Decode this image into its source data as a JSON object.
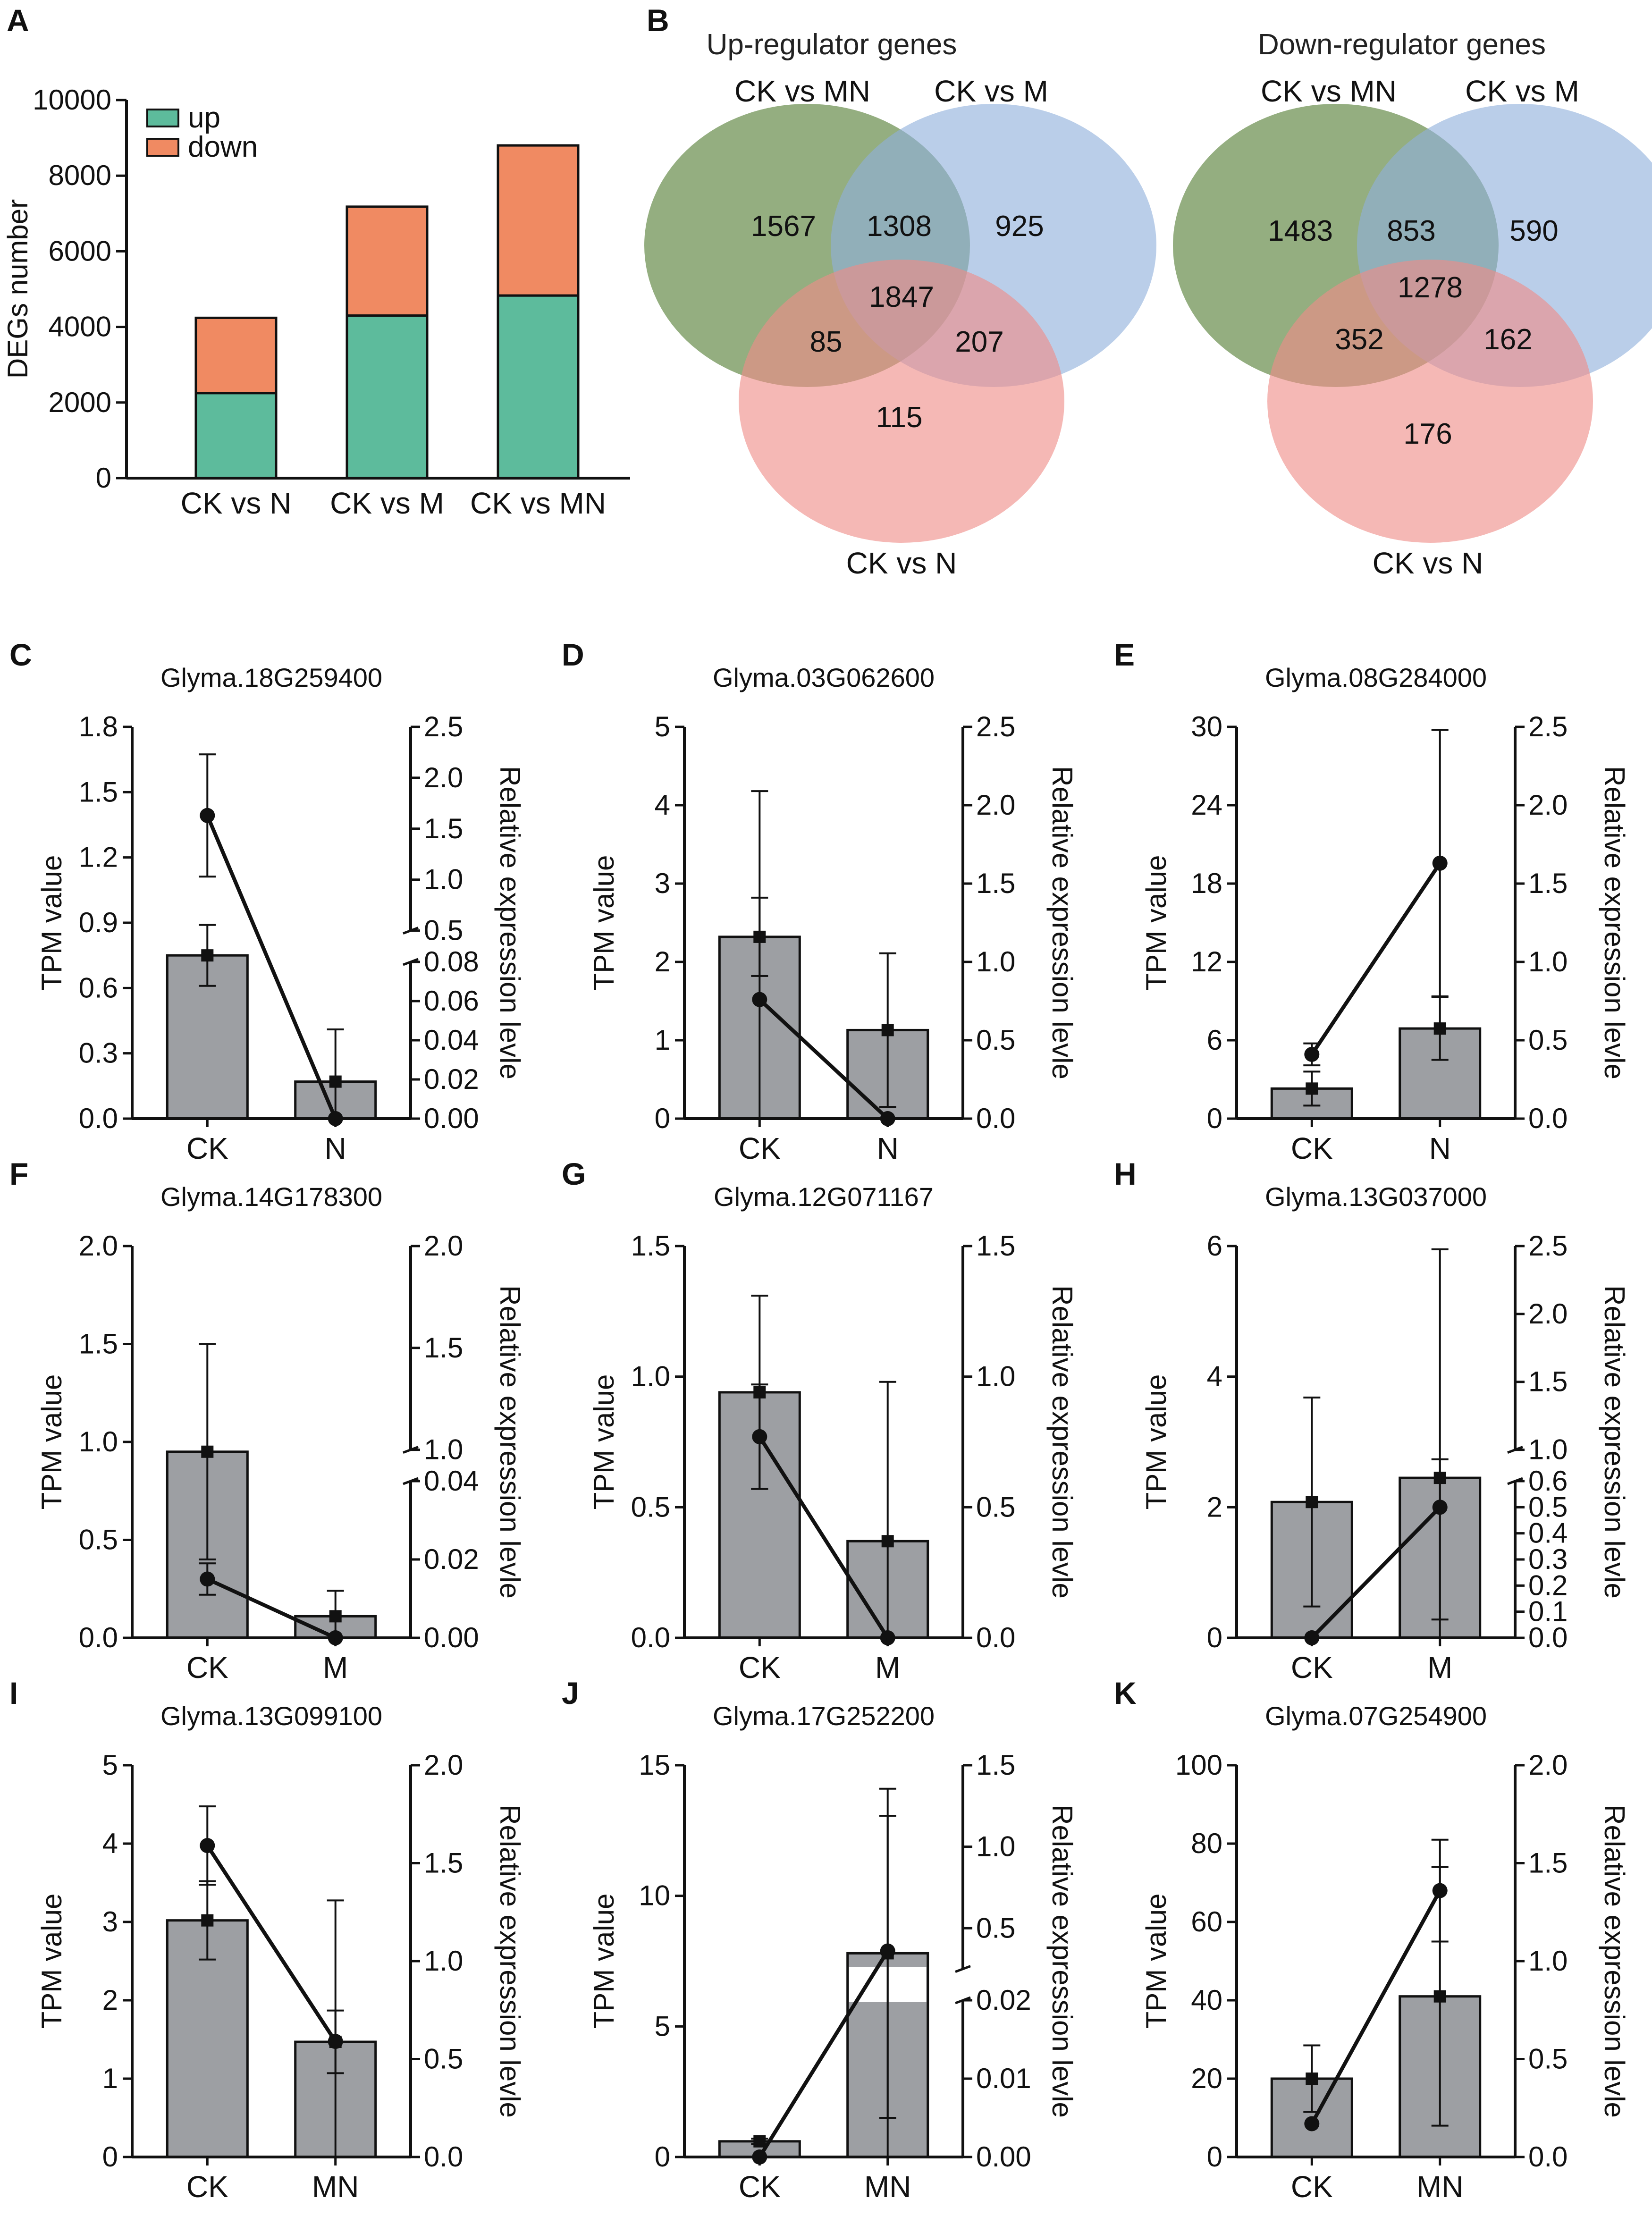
{
  "chart_data": [
    {
      "id": "A",
      "type": "bar",
      "stacked": true,
      "panel_label": "A",
      "categories": [
        "CK vs N",
        "CK vs M",
        "CK vs MN"
      ],
      "series": [
        {
          "name": "up",
          "color": "#5dbb9c",
          "values": [
            2250,
            4300,
            4830
          ]
        },
        {
          "name": "down",
          "color": "#f08a62",
          "values": [
            1990,
            2880,
            3970
          ]
        }
      ],
      "ylabel": "DEGs number",
      "ylim": [
        0,
        10000
      ],
      "yticks": [
        "0",
        "2000",
        "4000",
        "6000",
        "8000",
        "10000"
      ],
      "legend": "top-left"
    },
    {
      "id": "B",
      "type": "venn",
      "panel_label": "B",
      "diagrams": [
        {
          "title": "Up-regulator genes",
          "sets": [
            "CK vs MN",
            "CK vs M",
            "CK vs N"
          ],
          "regions": {
            "mn_only": "1567",
            "mn_m": "1308",
            "m_only": "925",
            "all": "1847",
            "mn_n": "85",
            "m_n": "207",
            "n_only": "115"
          }
        },
        {
          "title": "Down-regulator genes",
          "sets": [
            "CK vs MN",
            "CK vs M",
            "CK vs N"
          ],
          "regions": {
            "mn_only": "1483",
            "mn_m": "853",
            "m_only": "590",
            "all": "1278",
            "mn_n": "352",
            "m_n": "162",
            "n_only": "176"
          }
        }
      ],
      "colors": {
        "mn": "#6b8f4f",
        "m": "#8fb0dc",
        "n": "#ef8d87"
      }
    },
    {
      "id": "C",
      "type": "bar+line",
      "panel_label": "C",
      "title": "Glyma.18G259400",
      "categories": [
        "CK",
        "N"
      ],
      "tpm": {
        "values": [
          0.75,
          0.17
        ],
        "errors": [
          0.14,
          0.24
        ]
      },
      "rel": {
        "values": [
          1.63,
          0.0
        ],
        "errors": [
          0.6,
          0.0
        ]
      },
      "ylabel": "TPM value",
      "y2label": "Relative expression levle",
      "ylim": [
        0,
        1.8
      ],
      "yticks": [
        "0.0",
        "0.3",
        "0.6",
        "0.9",
        "1.2",
        "1.5",
        "1.8"
      ],
      "y2_lower": {
        "range": [
          0,
          0.08
        ],
        "ticks": [
          "0.00",
          "0.02",
          "0.04",
          "0.06",
          "0.08"
        ]
      },
      "y2_upper": {
        "range": [
          0.5,
          2.5
        ],
        "ticks": [
          "0.5",
          "1.0",
          "1.5",
          "2.0",
          "2.5"
        ]
      },
      "break": true
    },
    {
      "id": "D",
      "type": "bar+line",
      "panel_label": "D",
      "title": "Glyma.03G062600",
      "categories": [
        "CK",
        "N"
      ],
      "tpm": {
        "values": [
          2.32,
          1.13
        ],
        "errors": [
          0.5,
          0.98
        ]
      },
      "rel": {
        "values": [
          0.76,
          0.0
        ],
        "errors": [
          1.33,
          0.0
        ]
      },
      "ylabel": "TPM value",
      "y2label": "Relative expression levle",
      "ylim": [
        0,
        5
      ],
      "yticks": [
        "0",
        "1",
        "2",
        "3",
        "4",
        "5"
      ],
      "y2lim": [
        0,
        2.5
      ],
      "y2ticks": [
        "0.0",
        "0.5",
        "1.0",
        "1.5",
        "2.0",
        "2.5"
      ]
    },
    {
      "id": "E",
      "type": "bar+line",
      "panel_label": "E",
      "title": "Glyma.08G284000",
      "categories": [
        "CK",
        "N"
      ],
      "tpm": {
        "values": [
          2.3,
          6.9
        ],
        "errors": [
          1.3,
          2.4
        ]
      },
      "rel": {
        "values": [
          0.41,
          1.63
        ],
        "errors": [
          0.07,
          0.85
        ]
      },
      "ylabel": "TPM value",
      "y2label": "Relative expression levle",
      "ylim": [
        0,
        30
      ],
      "yticks": [
        "0",
        "6",
        "12",
        "18",
        "24",
        "30"
      ],
      "y2lim": [
        0,
        2.5
      ],
      "y2ticks": [
        "0.0",
        "0.5",
        "1.0",
        "1.5",
        "2.0",
        "2.5"
      ]
    },
    {
      "id": "F",
      "type": "bar+line",
      "panel_label": "F",
      "title": "Glyma.14G178300",
      "categories": [
        "CK",
        "M"
      ],
      "tpm": {
        "values": [
          0.95,
          0.11
        ],
        "errors": [
          0.55,
          0.13
        ]
      },
      "rel": {
        "values": [
          0.015,
          0.0
        ],
        "errors": [
          0.004,
          0.0
        ]
      },
      "ylabel": "TPM value",
      "y2label": "Relative expression levle",
      "ylim": [
        0,
        2.0
      ],
      "yticks": [
        "0.0",
        "0.5",
        "1.0",
        "1.5",
        "2.0"
      ],
      "y2_lower": {
        "range": [
          0,
          0.04
        ],
        "ticks": [
          "0.00",
          "0.02",
          "0.04"
        ]
      },
      "y2_upper": {
        "range": [
          1.0,
          2.0
        ],
        "ticks": [
          "1.0",
          "1.5",
          "2.0"
        ]
      },
      "break": true
    },
    {
      "id": "G",
      "type": "bar+line",
      "panel_label": "G",
      "title": "Glyma.12G071167",
      "categories": [
        "CK",
        "M"
      ],
      "tpm": {
        "values": [
          0.94,
          0.37
        ],
        "errors": [
          0.37,
          0.61
        ]
      },
      "rel": {
        "values": [
          0.77,
          0.0
        ],
        "errors": [
          0.2,
          0.0
        ]
      },
      "ylabel": "TPM value",
      "y2label": "Relative expression levle",
      "ylim": [
        0,
        1.5
      ],
      "yticks": [
        "0.0",
        "0.5",
        "1.0",
        "1.5"
      ],
      "y2lim": [
        0,
        1.5
      ],
      "y2ticks": [
        "0.0",
        "0.5",
        "1.0",
        "1.5"
      ]
    },
    {
      "id": "H",
      "type": "bar+line",
      "panel_label": "H",
      "title": "Glyma.13G037000",
      "categories": [
        "CK",
        "M"
      ],
      "tpm": {
        "values": [
          2.08,
          2.45
        ],
        "errors": [
          1.6,
          3.5
        ]
      },
      "rel": {
        "values": [
          0.0,
          0.5
        ],
        "errors": [
          0.0,
          0.43
        ]
      },
      "ylabel": "TPM value",
      "y2label": "Relative expression levle",
      "ylim": [
        0,
        6
      ],
      "yticks": [
        "0",
        "2",
        "4",
        "6"
      ],
      "y2_lower": {
        "range": [
          0,
          0.6
        ],
        "ticks": [
          "0.0",
          "0.1",
          "0.2",
          "0.3",
          "0.4",
          "0.5",
          "0.6"
        ]
      },
      "y2_upper": {
        "range": [
          1.0,
          2.5
        ],
        "ticks": [
          "1.0",
          "1.5",
          "2.0",
          "2.5"
        ]
      },
      "break": true
    },
    {
      "id": "I",
      "type": "bar+line",
      "panel_label": "I",
      "title": "Glyma.13G099100",
      "categories": [
        "CK",
        "MN"
      ],
      "tpm": {
        "values": [
          3.02,
          1.47
        ],
        "errors": [
          0.5,
          0.4
        ]
      },
      "rel": {
        "values": [
          1.59,
          0.59
        ],
        "errors": [
          0.2,
          0.72
        ]
      },
      "ylabel": "TPM value",
      "y2label": "Relative expression levle",
      "ylim": [
        0,
        5
      ],
      "yticks": [
        "0",
        "1",
        "2",
        "3",
        "4",
        "5"
      ],
      "y2lim": [
        0,
        2.0
      ],
      "y2ticks": [
        "0.0",
        "0.5",
        "1.0",
        "1.5",
        "2.0"
      ]
    },
    {
      "id": "J",
      "type": "bar+line",
      "panel_label": "J",
      "title": "Glyma.17G252200",
      "categories": [
        "CK",
        "MN"
      ],
      "tpm": {
        "values": [
          0.6,
          7.8
        ],
        "errors": [
          0.1,
          6.3
        ]
      },
      "rel": {
        "values": [
          0.0,
          0.36
        ],
        "errors": [
          0.0,
          0.83
        ]
      },
      "ylabel": "TPM value",
      "y2label": "Relative expression levle",
      "ylim": [
        0,
        15
      ],
      "yticks": [
        "0",
        "5",
        "10",
        "15"
      ],
      "y2_lower": {
        "range": [
          0,
          0.02
        ],
        "ticks": [
          "0.00",
          "0.01",
          "0.02"
        ]
      },
      "y2_upper": {
        "range": [
          0.25,
          1.5
        ],
        "ticks": [
          "0.5",
          "1.0",
          "1.5"
        ]
      },
      "break": true
    },
    {
      "id": "K",
      "type": "bar+line",
      "panel_label": "K",
      "title": "Glyma.07G254900",
      "categories": [
        "CK",
        "MN"
      ],
      "tpm": {
        "values": [
          20,
          41
        ],
        "errors": [
          8.5,
          33
        ]
      },
      "rel": {
        "values": [
          0.17,
          1.36
        ],
        "errors": [
          0.0,
          0.26
        ]
      },
      "ylabel": "TPM value",
      "y2label": "Relative expression levle",
      "ylim": [
        0,
        100
      ],
      "yticks": [
        "0",
        "20",
        "40",
        "60",
        "80",
        "100"
      ],
      "y2lim": [
        0,
        2.0
      ],
      "y2ticks": [
        "0.0",
        "0.5",
        "1.0",
        "1.5",
        "2.0"
      ]
    }
  ]
}
